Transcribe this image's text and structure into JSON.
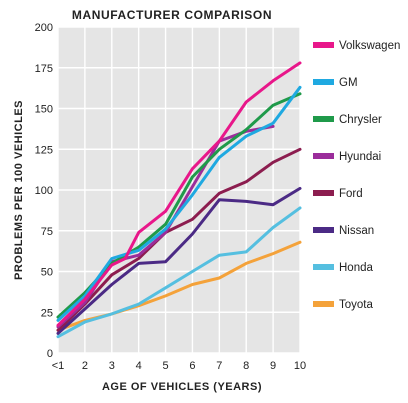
{
  "chart_data": {
    "type": "line",
    "title": "MANUFACTURER COMPARISON",
    "xlabel": "AGE OF VEHICLES (YEARS)",
    "ylabel": "PROBLEMS PER 100 VEHICLES",
    "x": [
      1,
      2,
      3,
      4,
      5,
      6,
      7,
      8,
      9,
      10
    ],
    "x_tick_labels": [
      "<1",
      "2",
      "3",
      "4",
      "5",
      "6",
      "7",
      "8",
      "9",
      "10"
    ],
    "xlim": [
      1,
      10
    ],
    "ylim": [
      0,
      200
    ],
    "y_ticks": [
      0,
      25,
      50,
      75,
      100,
      125,
      150,
      175,
      200
    ],
    "grid": true,
    "legend_position": "right",
    "series": [
      {
        "name": "Volkswagen",
        "color": "#e8178a",
        "x": [
          1,
          2,
          3,
          3.5,
          4,
          5,
          6,
          7,
          8,
          9,
          10
        ],
        "values": [
          17,
          33,
          54,
          58,
          74,
          87,
          113,
          130,
          154,
          167,
          178
        ]
      },
      {
        "name": "GM",
        "color": "#1fa9e1",
        "x": [
          1,
          2,
          3,
          4,
          5,
          6,
          7,
          8,
          9,
          10
        ],
        "values": [
          20,
          35,
          58,
          63,
          76,
          97,
          120,
          133,
          141,
          163
        ]
      },
      {
        "name": "Chrysler",
        "color": "#1f9a4a",
        "x": [
          1,
          2,
          3,
          4,
          5,
          6,
          7,
          8,
          9,
          10
        ],
        "values": [
          22,
          37,
          55,
          65,
          79,
          108,
          125,
          137,
          152,
          159
        ]
      },
      {
        "name": "Hyundai",
        "color": "#9b2d9b",
        "x": [
          1,
          2,
          3,
          4,
          5,
          6,
          7,
          8,
          9
        ],
        "values": [
          16,
          31,
          56,
          60,
          74,
          102,
          130,
          136,
          139
        ]
      },
      {
        "name": "Ford",
        "color": "#8c1d4f",
        "x": [
          1,
          2,
          3,
          4,
          5,
          6,
          7,
          8,
          9,
          10
        ],
        "values": [
          14,
          30,
          48,
          58,
          74,
          82,
          98,
          105,
          117,
          125
        ]
      },
      {
        "name": "Nissan",
        "color": "#4b2a85",
        "x": [
          1,
          2,
          3,
          4,
          5,
          6,
          7,
          8,
          9,
          10
        ],
        "values": [
          12,
          27,
          42,
          55,
          56,
          73,
          94,
          93,
          91,
          101
        ]
      },
      {
        "name": "Honda",
        "color": "#55bfe0",
        "x": [
          1,
          2,
          3,
          4,
          5,
          6,
          7,
          8,
          9,
          10
        ],
        "values": [
          10,
          19,
          24,
          30,
          40,
          50,
          60,
          62,
          77,
          89
        ]
      },
      {
        "name": "Toyota",
        "color": "#f4a23a",
        "x": [
          1,
          2,
          3,
          4,
          5,
          6,
          7,
          8,
          9,
          10
        ],
        "values": [
          14,
          20,
          24,
          29,
          35,
          42,
          46,
          55,
          61,
          68
        ]
      }
    ]
  }
}
